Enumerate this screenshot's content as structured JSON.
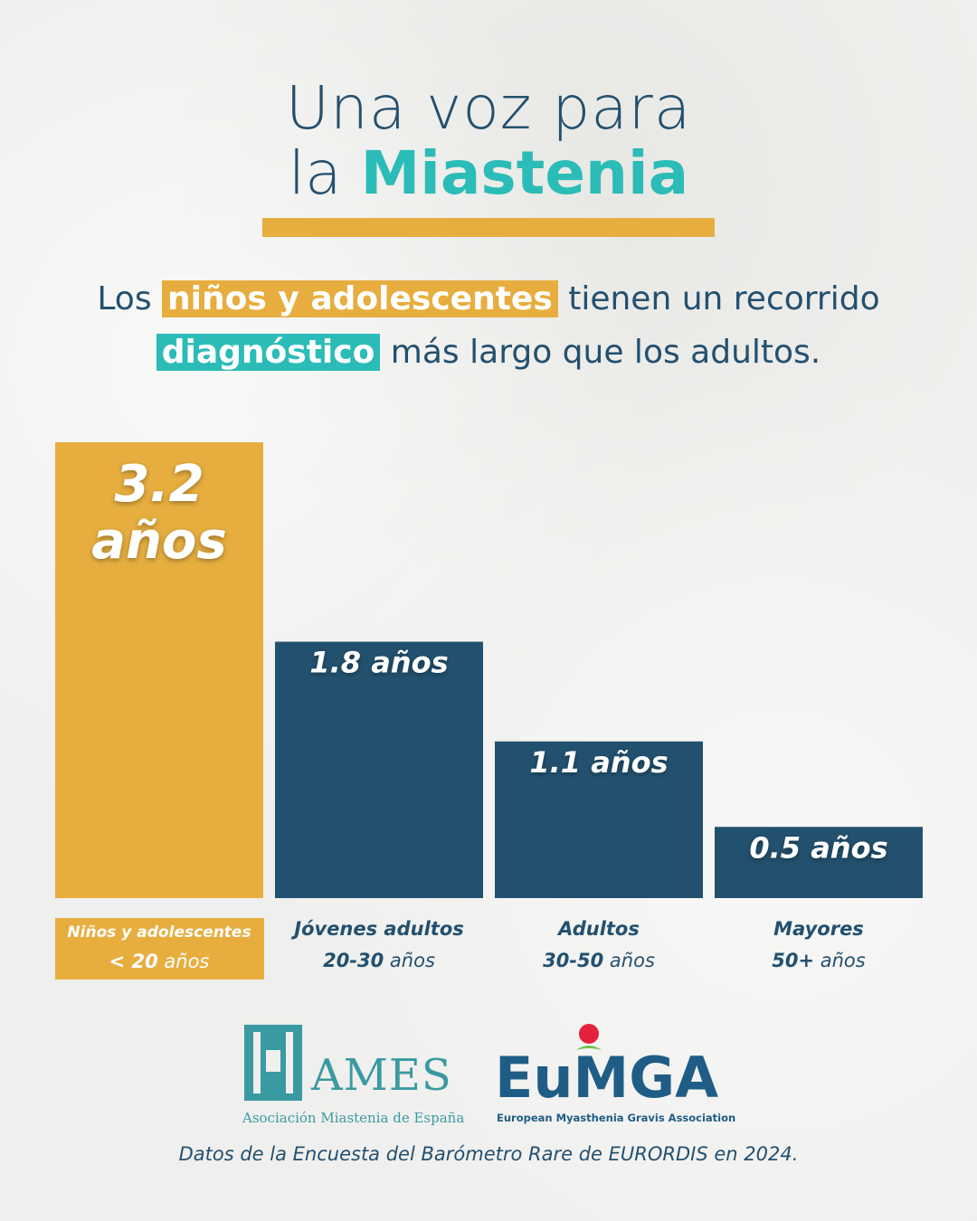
{
  "title": {
    "line1": "Una voz para",
    "line2_pre": "la",
    "line2_highlight": "Miastenia"
  },
  "subtitle": {
    "s1": "Los",
    "hl1": "niños y adolescentes",
    "s2": "tienen un recorrido",
    "hl2": "diagnóstico",
    "s3": "más largo que los adultos."
  },
  "colors": {
    "navy": "#23506f",
    "gold": "#e7ae3f",
    "teal": "#2bbcb7",
    "bar_navy": "#22516f"
  },
  "chart_data": {
    "type": "bar",
    "categories": [
      "Niños y adolescentes",
      "Jóvenes adultos",
      "Adultos",
      "Mayores"
    ],
    "ranges": [
      {
        "bold": "< 20",
        "unit": " años"
      },
      {
        "bold": "20-30",
        "unit": " años"
      },
      {
        "bold": "30-50",
        "unit": " años"
      },
      {
        "bold": "50+",
        "unit": " años"
      }
    ],
    "values": [
      3.2,
      1.8,
      1.1,
      0.5
    ],
    "value_labels": [
      "3.2",
      "1.8 años",
      "1.1 años",
      "0.5 años"
    ],
    "value_label_first_line2": "años",
    "bar_colors": [
      "#e7ae3f",
      "#22516f",
      "#22516f",
      "#22516f"
    ],
    "ylim": [
      0,
      3.2
    ],
    "grid": false,
    "legend": "none"
  },
  "logos": {
    "ames": {
      "name": "AMES",
      "sub": "Asociación Miastenia de España"
    },
    "eumga": {
      "name": "EuMGA",
      "sub": "European Myasthenia Gravis Association"
    }
  },
  "footer": "Datos de la Encuesta del Barómetro Rare de EURORDIS en 2024."
}
